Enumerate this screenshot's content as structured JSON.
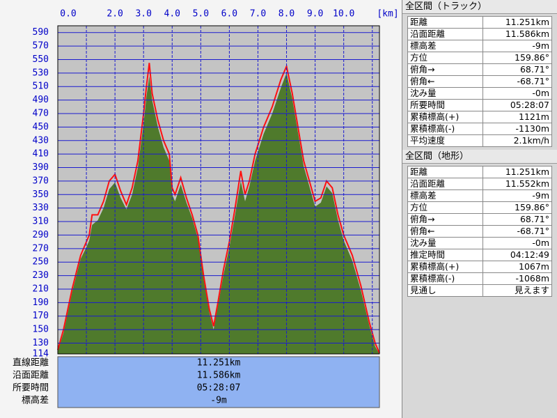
{
  "chart_data": {
    "type": "area",
    "x": [
      0,
      0.2,
      0.5,
      0.8,
      1.0,
      1.1,
      1.2,
      1.4,
      1.6,
      1.8,
      2.0,
      2.2,
      2.4,
      2.6,
      2.8,
      3.0,
      3.1,
      3.2,
      3.3,
      3.5,
      3.7,
      3.9,
      4.0,
      4.1,
      4.3,
      4.5,
      4.7,
      4.9,
      5.1,
      5.3,
      5.45,
      5.6,
      5.8,
      6.0,
      6.2,
      6.4,
      6.55,
      6.7,
      6.9,
      7.2,
      7.5,
      7.8,
      8.0,
      8.2,
      8.4,
      8.6,
      8.8,
      9.0,
      9.2,
      9.4,
      9.6,
      9.8,
      10.0,
      10.3,
      10.6,
      10.9,
      11.1,
      11.25
    ],
    "series": [
      {
        "color": "#4f7a2c",
        "values": [
          118,
          145,
          205,
          255,
          272,
          282,
          305,
          312,
          330,
          358,
          368,
          345,
          328,
          350,
          390,
          455,
          495,
          525,
          490,
          450,
          420,
          400,
          350,
          340,
          365,
          338,
          315,
          285,
          225,
          175,
          150,
          185,
          232,
          272,
          320,
          370,
          340,
          362,
          400,
          440,
          470,
          508,
          530,
          492,
          442,
          392,
          362,
          332,
          338,
          362,
          352,
          312,
          282,
          252,
          208,
          155,
          125,
          114
        ],
        "fill": true
      },
      {
        "color": "#ff1010",
        "values": [
          120,
          150,
          210,
          260,
          280,
          290,
          320,
          320,
          340,
          370,
          380,
          355,
          335,
          360,
          400,
          470,
          510,
          545,
          500,
          460,
          430,
          410,
          360,
          350,
          375,
          345,
          320,
          290,
          230,
          180,
          155,
          190,
          240,
          280,
          330,
          385,
          350,
          370,
          410,
          450,
          480,
          520,
          540,
          500,
          450,
          400,
          370,
          340,
          345,
          370,
          360,
          320,
          290,
          260,
          215,
          160,
          130,
          115
        ],
        "fill": false
      }
    ],
    "xlim": [
      0,
      11.25
    ],
    "ylim": [
      114,
      600
    ],
    "xticks": [
      {
        "value": 0,
        "label": "0.0"
      },
      {
        "value": 1,
        "label": null
      },
      {
        "value": 2,
        "label": "2.0"
      },
      {
        "value": 3,
        "label": "3.0"
      },
      {
        "value": 4,
        "label": "4.0"
      },
      {
        "value": 5,
        "label": "5.0"
      },
      {
        "value": 6,
        "label": "6.0"
      },
      {
        "value": 7,
        "label": "7.0"
      },
      {
        "value": 8,
        "label": "8.0"
      },
      {
        "value": 9,
        "label": "9.0"
      },
      {
        "value": 10,
        "label": "10.0"
      },
      {
        "value": 11,
        "label": null
      }
    ],
    "xlabel": "[km]",
    "yticks": [
      114,
      130,
      150,
      170,
      190,
      210,
      230,
      250,
      270,
      290,
      310,
      330,
      350,
      370,
      390,
      410,
      430,
      450,
      470,
      490,
      510,
      530,
      550,
      570,
      590
    ],
    "grid": true
  },
  "summary": {
    "labels": [
      "直線距離",
      "沿面距離",
      "所要時間",
      "標高差"
    ],
    "values": [
      "11.251km",
      "11.586km",
      "05:28:07",
      "-9m"
    ]
  },
  "track_panel": {
    "title": "全区間（トラック）",
    "rows": [
      [
        "距離",
        "11.251km"
      ],
      [
        "沿面距離",
        "11.586km"
      ],
      [
        "標高差",
        "-9m"
      ],
      [
        "方位",
        "159.86°"
      ],
      [
        "俯角→",
        "68.71°"
      ],
      [
        "俯角←",
        "-68.71°"
      ],
      [
        "沈み量",
        "-0m"
      ],
      [
        "所要時間",
        "05:28:07"
      ],
      [
        "累積標高(+)",
        "1121m"
      ],
      [
        "累積標高(-)",
        "-1130m"
      ],
      [
        "平均速度",
        "2.1km/h"
      ]
    ]
  },
  "terrain_panel": {
    "title": "全区間（地形）",
    "rows": [
      [
        "距離",
        "11.251km"
      ],
      [
        "沿面距離",
        "11.552km"
      ],
      [
        "標高差",
        "-9m"
      ],
      [
        "方位",
        "159.86°"
      ],
      [
        "俯角→",
        "68.71°"
      ],
      [
        "俯角←",
        "-68.71°"
      ],
      [
        "沈み量",
        "-0m"
      ],
      [
        "推定時間",
        "04:12:49"
      ],
      [
        "累積標高(+)",
        "1067m"
      ],
      [
        "累積標高(-)",
        "-1068m"
      ],
      [
        "見通し",
        "見えます"
      ]
    ]
  }
}
